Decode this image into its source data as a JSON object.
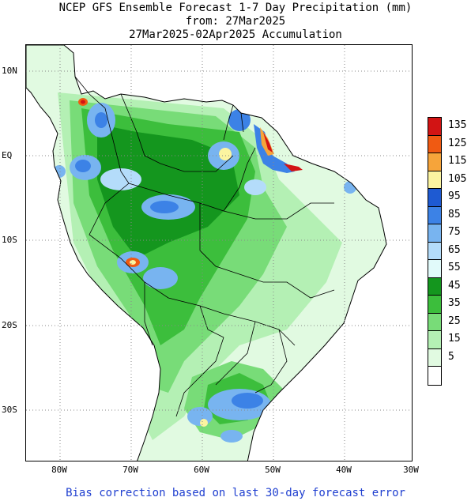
{
  "title": {
    "line1": "NCEP GFS Ensemble Forecast 1-7 Day Precipitation (mm)",
    "line2": "from: 27Mar2025",
    "line3": "27Mar2025-02Apr2025 Accumulation"
  },
  "axes": {
    "lat_labels": [
      "10N",
      "EQ",
      "10S",
      "20S",
      "30S"
    ],
    "lon_labels": [
      "80W",
      "70W",
      "60W",
      "50W",
      "40W",
      "30W"
    ]
  },
  "legend": {
    "unit": "mm",
    "levels": [
      {
        "label": "135",
        "color": "#d21414"
      },
      {
        "label": "125",
        "color": "#f05a12"
      },
      {
        "label": "115",
        "color": "#f6a43a"
      },
      {
        "label": "105",
        "color": "#fbf4a0"
      },
      {
        "label": "95",
        "color": "#1e5ad2"
      },
      {
        "label": "85",
        "color": "#3c82e6"
      },
      {
        "label": "75",
        "color": "#78b4f0"
      },
      {
        "label": "65",
        "color": "#b4dcfa"
      },
      {
        "label": "55",
        "color": "#e1fafa"
      },
      {
        "label": "45",
        "color": "#14961e"
      },
      {
        "label": "35",
        "color": "#3cbe3c"
      },
      {
        "label": "25",
        "color": "#78dc78"
      },
      {
        "label": "15",
        "color": "#b4f0b4"
      },
      {
        "label": "5",
        "color": "#e1fae1"
      },
      {
        "label": "",
        "color": "#ffffff"
      }
    ]
  },
  "footer": "Bias correction based on last 30-day forecast error"
}
